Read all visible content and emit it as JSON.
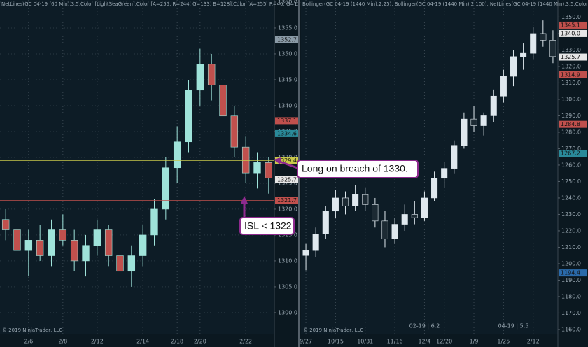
{
  "chart_data": [
    {
      "type": "candlestick",
      "header": "NetLines(GC 04-19 (60 Min),3,5,Color [LightSeaGreen],Color [A=255, R=244, G=133, B=128],Color [A=255, R=40, G=131, B=",
      "footer": "© 2019 NinjaTrader, LLC",
      "categories": [
        null,
        null,
        "2/6",
        null,
        null,
        "2/8",
        null,
        null,
        "2/12",
        null,
        null,
        null,
        "2/14",
        null,
        null,
        "2/18",
        null,
        "2/20",
        null,
        null,
        null,
        "2/22",
        null,
        null
      ],
      "open": [
        1318,
        1316,
        1312,
        1314,
        1311,
        1316,
        1314,
        1310,
        1313,
        1316,
        1311,
        1308,
        1311,
        1315,
        1320,
        1328,
        1333,
        1343,
        1348,
        1344,
        1338,
        1332,
        1327,
        1329
      ],
      "high": [
        1320,
        1318,
        1316,
        1317,
        1318,
        1319,
        1316,
        1315,
        1318,
        1317,
        1314,
        1313,
        1317,
        1322,
        1330,
        1336,
        1345,
        1351,
        1350,
        1346,
        1340,
        1334,
        1331,
        1330
      ],
      "low": [
        1314,
        1310,
        1307,
        1310,
        1309,
        1313,
        1308,
        1307,
        1311,
        1309,
        1306,
        1305,
        1309,
        1313,
        1318,
        1325,
        1331,
        1340,
        1341,
        1336,
        1330,
        1325,
        1324,
        1323
      ],
      "close": [
        1316,
        1312,
        1314,
        1311,
        1316,
        1314,
        1310,
        1313,
        1316,
        1311,
        1308,
        1311,
        1315,
        1320,
        1328,
        1333,
        1343,
        1348,
        1344,
        1338,
        1332,
        1327,
        1329,
        1326
      ],
      "up_color": "#9fe3da",
      "down_color": "#c0504d",
      "ylim": [
        1295.8,
        1360.4
      ],
      "yticks": [
        {
          "value": 1300,
          "label": "1300.0"
        },
        {
          "value": 1305,
          "label": "1305.0"
        },
        {
          "value": 1310,
          "label": "1310.0"
        },
        {
          "value": 1315,
          "label": "1315.0"
        },
        {
          "value": 1320,
          "label": "1320.0"
        },
        {
          "value": 1325,
          "label": "1325.0"
        },
        {
          "value": 1330,
          "label": "1330.0"
        },
        {
          "value": 1335,
          "label": "1335.0"
        },
        {
          "value": 1340,
          "label": "1340.0"
        },
        {
          "value": 1345,
          "label": "1345.0"
        },
        {
          "value": 1350,
          "label": "1350.0"
        },
        {
          "value": 1355,
          "label": "1355.0"
        },
        {
          "value": 1360,
          "label": "1360.0"
        }
      ],
      "grid": true,
      "markers": [
        1352.7,
        1337.1,
        1334.6,
        1329.4,
        1325.7,
        1321.7
      ],
      "marker_colors": [
        "#8a9aa6",
        "#c0504d",
        "#2a8a9a",
        "#c8c84a",
        "#e6e6e6",
        "#c0504d"
      ],
      "marker_lines": [
        false,
        false,
        false,
        true,
        false,
        true
      ],
      "notes": []
    },
    {
      "type": "candlestick",
      "header": "Bollinger(GC 04-19 (1440 Min),2,25), Bollinger(GC 04-19 (1440 Min),2,100), NetLines(GC 04-19 (1440 Min),3,5,Color",
      "footer": "© 2019 NinjaTrader, LLC",
      "categories": [
        "9/27",
        null,
        null,
        "10/15",
        null,
        null,
        "10/31",
        null,
        null,
        "11/16",
        null,
        null,
        "12/4",
        null,
        "12/20",
        null,
        null,
        "1/9",
        null,
        null,
        "1/25",
        null,
        null,
        "2/12",
        null,
        null
      ],
      "open": [
        1205,
        1208,
        1218,
        1232,
        1240,
        1235,
        1242,
        1236,
        1226,
        1215,
        1224,
        1230,
        1228,
        1240,
        1252,
        1258,
        1272,
        1288,
        1284,
        1290,
        1302,
        1314,
        1326,
        1328,
        1340,
        1336
      ],
      "high": [
        1212,
        1222,
        1235,
        1245,
        1244,
        1248,
        1246,
        1240,
        1232,
        1228,
        1236,
        1238,
        1244,
        1256,
        1262,
        1275,
        1292,
        1296,
        1292,
        1306,
        1318,
        1330,
        1334,
        1344,
        1348,
        1342
      ],
      "low": [
        1196,
        1204,
        1215,
        1228,
        1230,
        1232,
        1232,
        1222,
        1210,
        1212,
        1220,
        1224,
        1226,
        1238,
        1246,
        1255,
        1270,
        1280,
        1278,
        1286,
        1298,
        1308,
        1318,
        1324,
        1332,
        1322
      ],
      "close": [
        1208,
        1218,
        1232,
        1240,
        1235,
        1242,
        1236,
        1226,
        1215,
        1224,
        1230,
        1228,
        1240,
        1252,
        1258,
        1272,
        1288,
        1284,
        1290,
        1302,
        1314,
        1326,
        1328,
        1340,
        1336,
        1326
      ],
      "up_color": "#dfe8ee",
      "down_color": "#1c2a33",
      "ylim": [
        1157,
        1360.4
      ],
      "yticks": [
        {
          "value": 1160,
          "label": "1160.0"
        },
        {
          "value": 1170,
          "label": "1170.0"
        },
        {
          "value": 1180,
          "label": "1180.0"
        },
        {
          "value": 1190,
          "label": "1190.0"
        },
        {
          "value": 1200,
          "label": "1200.0"
        },
        {
          "value": 1210,
          "label": "1210.0"
        },
        {
          "value": 1220,
          "label": "1220.0"
        },
        {
          "value": 1230,
          "label": "1230.0"
        },
        {
          "value": 1240,
          "label": "1240.0"
        },
        {
          "value": 1250,
          "label": "1250.0"
        },
        {
          "value": 1260,
          "label": "1260.0"
        },
        {
          "value": 1270,
          "label": "1270.0"
        },
        {
          "value": 1280,
          "label": "1280.0"
        },
        {
          "value": 1290,
          "label": "1290.0"
        },
        {
          "value": 1300,
          "label": "1300.0"
        },
        {
          "value": 1310,
          "label": "1310.0"
        },
        {
          "value": 1320,
          "label": "1320.0"
        },
        {
          "value": 1330,
          "label": "1330.0"
        },
        {
          "value": 1340,
          "label": "1340.0"
        },
        {
          "value": 1350,
          "label": "1350.0"
        }
      ],
      "grid": false,
      "markers": [
        1345.1,
        {
          "value": 1340,
          "label": "1340.0"
        },
        1325.7,
        1314.9,
        1284.8,
        1267.2,
        1194.4
      ],
      "marker_colors": [
        "#c0504d",
        "#e6e6e6",
        "#e6e6e6",
        "#c0504d",
        "#c0504d",
        "#2a8a9a",
        "#2a6aaa"
      ],
      "marker_lines": [
        false,
        false,
        false,
        false,
        false,
        false,
        false
      ],
      "notes": [
        "02-19 | 6.2",
        "04-19 | 5.5"
      ]
    }
  ],
  "annotations": [
    "Long on breach of 1330.",
    "ISL < 1322"
  ]
}
